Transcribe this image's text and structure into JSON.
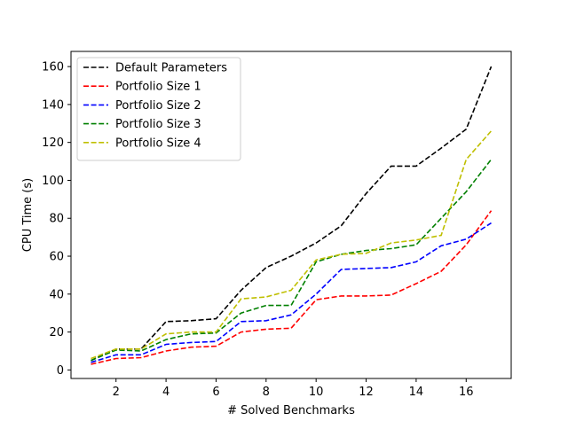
{
  "chart_data": {
    "type": "line",
    "title": "",
    "xlabel": "# Solved Benchmarks",
    "ylabel": "CPU Time (s)",
    "xlim": [
      0.2,
      17.8
    ],
    "ylim": [
      -4.5,
      168
    ],
    "xticks": [
      2,
      4,
      6,
      8,
      10,
      12,
      14,
      16
    ],
    "yticks": [
      0,
      20,
      40,
      60,
      80,
      100,
      120,
      140,
      160
    ],
    "grid": false,
    "legend_position": "top-left",
    "x": [
      1,
      2,
      3,
      4,
      5,
      6,
      7,
      8,
      9,
      10,
      11,
      12,
      13,
      14,
      15,
      16,
      17
    ],
    "series": [
      {
        "name": "Default Parameters",
        "color": "#000000",
        "style": "dashed",
        "values": [
          5,
          11,
          11,
          25.5,
          26,
          27,
          42,
          54,
          60,
          67,
          76,
          93,
          107.5,
          107.5,
          117,
          127,
          160
        ]
      },
      {
        "name": "Portfolio Size 1",
        "color": "#ff0000",
        "style": "dashed",
        "values": [
          3,
          6,
          6.5,
          10,
          12,
          12.5,
          20,
          21.5,
          22,
          37,
          39,
          39,
          39.5,
          45.5,
          52,
          66,
          84
        ]
      },
      {
        "name": "Portfolio Size 2",
        "color": "#0000ff",
        "style": "dashed",
        "values": [
          4,
          8,
          8,
          13.5,
          14.5,
          15,
          25.5,
          26,
          29,
          40,
          53,
          53.5,
          54,
          57,
          65.5,
          69,
          77.5
        ]
      },
      {
        "name": "Portfolio Size 3",
        "color": "#008000",
        "style": "dashed",
        "values": [
          5,
          10.5,
          10,
          16,
          19,
          19.5,
          30,
          34,
          34,
          57,
          61,
          63,
          64,
          66,
          80,
          94,
          111
        ]
      },
      {
        "name": "Portfolio Size 4",
        "color": "#bfbf00",
        "style": "dashed",
        "values": [
          6,
          11,
          11,
          19,
          20,
          20,
          37.5,
          38.5,
          42,
          58,
          61,
          61.5,
          67,
          68.5,
          71,
          111,
          126
        ]
      }
    ]
  }
}
